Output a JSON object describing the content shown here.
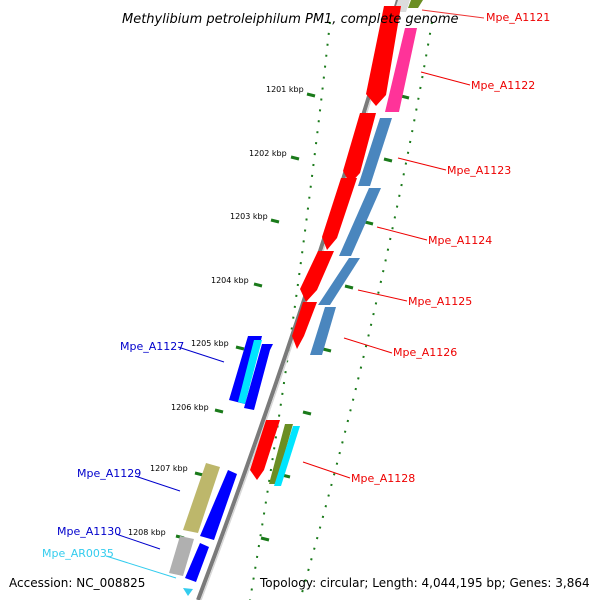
{
  "title": "Methylibium petroleiphilum PM1, complete genome",
  "footer": {
    "accession": "Accession: NC_008825",
    "topology": "Topology: circular; Length: 4,044,195 bp; Genes: 3,864"
  },
  "colors": {
    "backbone": "#808080",
    "tick": "#1a7a1a",
    "forward_cds": "#0000ff",
    "reverse_cds": "#ff0000",
    "right_label": "#ee0000",
    "left_label": "#0000cc",
    "rna_label": "#33ccee",
    "pink": "#ff3399",
    "steel": "#4a86be",
    "cyan": "#00e5ff",
    "olive": "#6b8e23",
    "khaki": "#bdb76b",
    "grey": "#b0b0b0",
    "teal": "#20b2aa"
  },
  "kbp_labels": [
    "1201 kbp",
    "1202 kbp",
    "1203 kbp",
    "1204 kbp",
    "1205 kbp",
    "1206 kbp",
    "1207 kbp",
    "1208 kbp"
  ],
  "gene_labels": {
    "mpe_a1121": "Mpe_A1121",
    "mpe_a1122": "Mpe_A1122",
    "mpe_a1123": "Mpe_A1123",
    "mpe_a1124": "Mpe_A1124",
    "mpe_a1125": "Mpe_A1125",
    "mpe_a1126": "Mpe_A1126",
    "mpe_a1127": "Mpe_A1127",
    "mpe_a1128": "Mpe_A1128",
    "mpe_a1129": "Mpe_A1129",
    "mpe_a1130": "Mpe_A1130",
    "mpe_ar0035": "Mpe_AR0035"
  }
}
